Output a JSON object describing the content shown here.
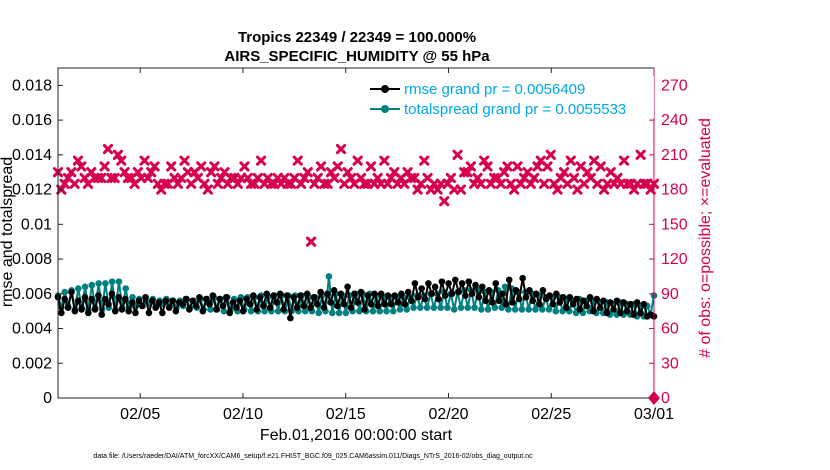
{
  "chart_data": {
    "type": "line",
    "title": "Tropics 22349 / 22349 = 100.000%",
    "subtitle": "AIRS_SPECIFIC_HUMIDITY @ 55 hPa",
    "xlabel": "Feb.01,2016 00:00:00 start",
    "ylabel_left": "rmse and totalspread",
    "ylabel_right": "# of obs: o=possible; ×=evaluated",
    "xlim": [
      0,
      29
    ],
    "ylim_left": [
      0,
      0.019
    ],
    "ylim_right": [
      0,
      285
    ],
    "x_ticks": [
      4,
      9,
      14,
      19,
      24,
      29
    ],
    "x_tick_labels": [
      "02/05",
      "02/10",
      "02/15",
      "02/20",
      "02/25",
      "03/01"
    ],
    "y_left_ticks": [
      0,
      0.002,
      0.004,
      0.006,
      0.008,
      0.01,
      0.012,
      0.014,
      0.016,
      0.018
    ],
    "y_left_tick_labels": [
      "0",
      "0.002",
      "0.004",
      "0.006",
      "0.008",
      "0.01",
      "0.012",
      "0.014",
      "0.016",
      "0.018"
    ],
    "y_right_ticks": [
      0,
      30,
      60,
      90,
      120,
      150,
      180,
      210,
      240,
      270
    ],
    "y_right_tick_labels": [
      "0",
      "30",
      "60",
      "90",
      "120",
      "150",
      "180",
      "210",
      "240",
      "270"
    ],
    "legend_position": "top-right",
    "colors": {
      "rmse": "#000000",
      "spread": "#008080",
      "obs": "#d6004f",
      "legend_text": "#00a8e8",
      "right_axis": "#d6004f"
    },
    "series": [
      {
        "name": "rmse grand pr = 0.0056409",
        "values": [
          0.0058,
          0.0049,
          0.0057,
          0.0052,
          0.0061,
          0.005,
          0.0056,
          0.0051,
          0.0058,
          0.0049,
          0.0057,
          0.0051,
          0.0059,
          0.0048,
          0.0057,
          0.0054,
          0.006,
          0.005,
          0.0058,
          0.0051,
          0.0057,
          0.005,
          0.0055,
          0.0049,
          0.0056,
          0.0053,
          0.0058,
          0.0049,
          0.0056,
          0.0052,
          0.0055,
          0.0049,
          0.0056,
          0.0052,
          0.0056,
          0.005,
          0.0055,
          0.0054,
          0.0057,
          0.0051,
          0.0056,
          0.0053,
          0.0058,
          0.005,
          0.0057,
          0.0054,
          0.0059,
          0.0051,
          0.0057,
          0.0053,
          0.0058,
          0.0049,
          0.0055,
          0.0052,
          0.0056,
          0.005,
          0.0057,
          0.0054,
          0.0059,
          0.0051,
          0.0058,
          0.0053,
          0.006,
          0.0052,
          0.0059,
          0.0055,
          0.006,
          0.0051,
          0.0059,
          0.0046,
          0.0058,
          0.0052,
          0.0059,
          0.0053,
          0.006,
          0.0052,
          0.0058,
          0.0054,
          0.0061,
          0.0052,
          0.006,
          0.0055,
          0.0062,
          0.0053,
          0.006,
          0.0054,
          0.0064,
          0.0052,
          0.006,
          0.0055,
          0.0061,
          0.0051,
          0.0059,
          0.0054,
          0.006,
          0.0053,
          0.006,
          0.0054,
          0.0059,
          0.0054,
          0.0059,
          0.0055,
          0.006,
          0.0054,
          0.0061,
          0.0056,
          0.0066,
          0.0058,
          0.0063,
          0.0057,
          0.0066,
          0.006,
          0.0064,
          0.0057,
          0.0067,
          0.0059,
          0.0066,
          0.006,
          0.0068,
          0.0061,
          0.0066,
          0.0059,
          0.0067,
          0.006,
          0.0065,
          0.0058,
          0.0064,
          0.0056,
          0.0062,
          0.0055,
          0.0066,
          0.0056,
          0.006,
          0.0054,
          0.0068,
          0.0055,
          0.0062,
          0.0057,
          0.0069,
          0.0058,
          0.0062,
          0.0056,
          0.006,
          0.0054,
          0.0062,
          0.0057,
          0.0059,
          0.0054,
          0.006,
          0.0055,
          0.0058,
          0.0052,
          0.0058,
          0.0054,
          0.0057,
          0.0051,
          0.0056,
          0.0053,
          0.0058,
          0.005,
          0.0057,
          0.0052,
          0.0056,
          0.0049,
          0.0055,
          0.0051,
          0.0056,
          0.0049,
          0.0055,
          0.005,
          0.0054,
          0.0048,
          0.0055,
          0.0049,
          0.0054,
          0.0047,
          0.0048,
          0.0047
        ]
      },
      {
        "name": "totalspread grand pr = 0.0055533",
        "values": [
          0.0059,
          0.0052,
          0.0061,
          0.0053,
          0.0062,
          0.0051,
          0.0063,
          0.0052,
          0.0064,
          0.0051,
          0.0065,
          0.0052,
          0.0066,
          0.0051,
          0.0066,
          0.0052,
          0.0067,
          0.0051,
          0.0067,
          0.0052,
          0.0063,
          0.0052,
          0.0058,
          0.0053,
          0.0057,
          0.0053,
          0.0056,
          0.0054,
          0.0057,
          0.0053,
          0.0056,
          0.0054,
          0.0057,
          0.0053,
          0.0056,
          0.0052,
          0.0056,
          0.0053,
          0.0057,
          0.0052,
          0.0056,
          0.0052,
          0.0057,
          0.0051,
          0.0057,
          0.0051,
          0.0058,
          0.0051,
          0.0057,
          0.005,
          0.0058,
          0.0051,
          0.0057,
          0.005,
          0.0058,
          0.0051,
          0.0058,
          0.005,
          0.0058,
          0.005,
          0.0059,
          0.005,
          0.0058,
          0.005,
          0.0059,
          0.005,
          0.0059,
          0.005,
          0.0059,
          0.005,
          0.0059,
          0.005,
          0.0059,
          0.005,
          0.0058,
          0.005,
          0.0058,
          0.0049,
          0.0059,
          0.005,
          0.007,
          0.0049,
          0.006,
          0.0049,
          0.0059,
          0.0049,
          0.0059,
          0.005,
          0.006,
          0.005,
          0.006,
          0.005,
          0.006,
          0.005,
          0.0059,
          0.005,
          0.0058,
          0.005,
          0.0058,
          0.005,
          0.0058,
          0.0051,
          0.0058,
          0.0051,
          0.0058,
          0.0052,
          0.0059,
          0.0052,
          0.0059,
          0.0052,
          0.006,
          0.0052,
          0.006,
          0.0052,
          0.0061,
          0.0052,
          0.006,
          0.0051,
          0.0061,
          0.0052,
          0.0062,
          0.0052,
          0.0062,
          0.0052,
          0.0062,
          0.0051,
          0.0061,
          0.0051,
          0.0061,
          0.0052,
          0.0062,
          0.0052,
          0.0064,
          0.0051,
          0.0063,
          0.0051,
          0.0061,
          0.0051,
          0.0061,
          0.0051,
          0.006,
          0.0051,
          0.0059,
          0.0051,
          0.0058,
          0.0051,
          0.0058,
          0.005,
          0.0058,
          0.005,
          0.0057,
          0.005,
          0.0056,
          0.0049,
          0.0057,
          0.0049,
          0.0056,
          0.005,
          0.0056,
          0.0049,
          0.0055,
          0.0049,
          0.0055,
          0.0048,
          0.0054,
          0.0048,
          0.0055,
          0.0048,
          0.0054,
          0.0048,
          0.0054,
          0.0047,
          0.0053,
          0.0047,
          0.0053,
          0.0048,
          0.0059
        ]
      },
      {
        "name": "# of obs evaluated",
        "axis": "right",
        "values": [
          195,
          180,
          185,
          190,
          195,
          185,
          205,
          200,
          190,
          185,
          195,
          190,
          190,
          190,
          200,
          215,
          190,
          190,
          210,
          205,
          195,
          190,
          190,
          185,
          195,
          190,
          205,
          190,
          195,
          200,
          185,
          180,
          185,
          185,
          200,
          190,
          185,
          190,
          205,
          195,
          185,
          195,
          190,
          200,
          185,
          180,
          195,
          200,
          185,
          190,
          195,
          185,
          190,
          190,
          185,
          190,
          200,
          190,
          185,
          185,
          190,
          205,
          185,
          190,
          185,
          185,
          190,
          185,
          190,
          185,
          185,
          190,
          205,
          185,
          190,
          195,
          135,
          185,
          190,
          200,
          185,
          185,
          195,
          190,
          200,
          215,
          185,
          195,
          190,
          185,
          205,
          190,
          185,
          185,
          200,
          185,
          190,
          185,
          205,
          185,
          190,
          195,
          185,
          190,
          185,
          195,
          190,
          190,
          180,
          185,
          205,
          190,
          180,
          185,
          180,
          185,
          170,
          185,
          190,
          180,
          210,
          180,
          195,
          195,
          200,
          185,
          190,
          185,
          205,
          200,
          185,
          190,
          190,
          185,
          195,
          200,
          185,
          180,
          200,
          185,
          190,
          195,
          185,
          190,
          200,
          205,
          185,
          200,
          210,
          185,
          180,
          190,
          195,
          185,
          205,
          190,
          180,
          200,
          185,
          195,
          190,
          205,
          185,
          200,
          180,
          185,
          195,
          185,
          190,
          185,
          205,
          185,
          185,
          180,
          185,
          210,
          185,
          185,
          180,
          185
        ]
      }
    ]
  },
  "footer": {
    "data_file": "data file: /Users/raeder/DAI/ATM_forcXX/CAM6_setup/f.e21.FHIST_BGC.f09_025.CAM6assim.011/Diags_NTrS_2016-02/obs_diag_output.nc"
  }
}
